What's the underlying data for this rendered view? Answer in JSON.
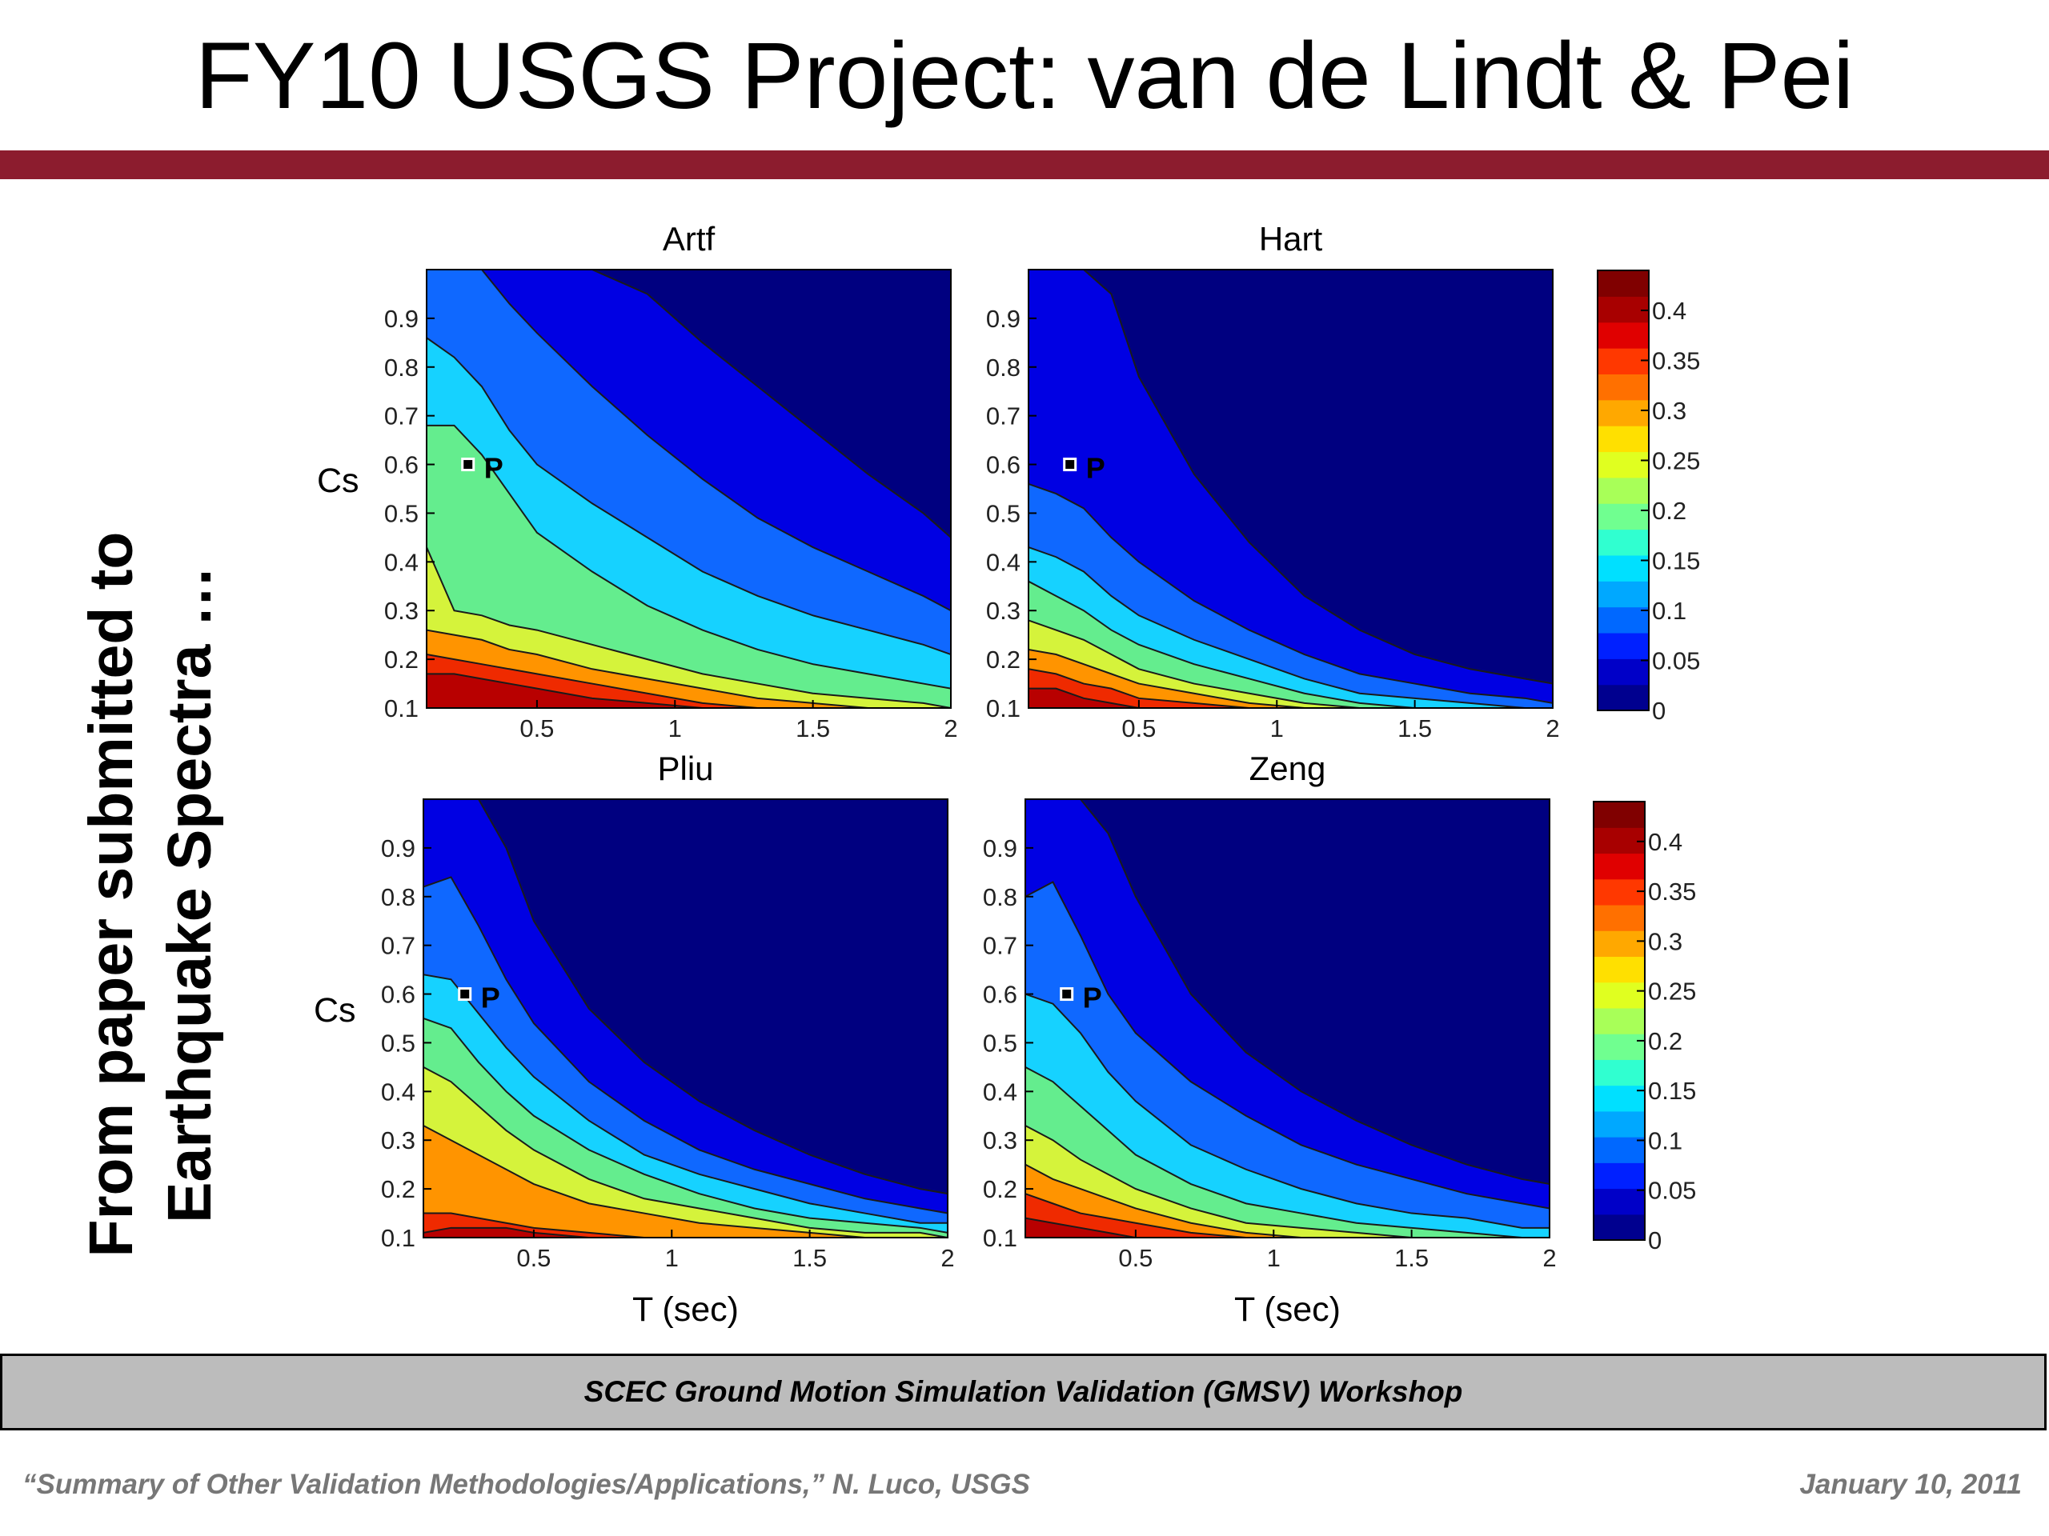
{
  "slide": {
    "title": "FY10 USGS Project: van de Lindt & Pei",
    "side_caption": [
      "From paper submitted to",
      "Earthquake Spectra …"
    ],
    "banner": "SCEC Ground Motion Simulation Validation (GMSV) Workshop",
    "footer_citation": "“Summary of Other Validation Methodologies/Applications,” N. Luco, USGS",
    "footer_date": "January 10, 2011",
    "accent_color": "#8c1c2e",
    "banner_color": "#bcbcbc"
  },
  "chart_data": [
    {
      "type": "heatmap",
      "title": "Artf",
      "xlabel": "",
      "ylabel": "Cs",
      "xlim": [
        0.1,
        2
      ],
      "ylim": [
        0.1,
        1
      ],
      "xticks": [
        "0.5",
        "1",
        "1.5",
        "2"
      ],
      "yticks": [
        "0.1",
        "0.2",
        "0.3",
        "0.4",
        "0.5",
        "0.6",
        "0.7",
        "0.8",
        "0.9"
      ],
      "marker": {
        "label": "P",
        "x": 0.25,
        "y": 0.6
      },
      "levels": [
        0.4,
        0.35,
        0.3,
        0.25,
        0.2,
        0.15,
        0.1,
        0.05
      ],
      "contour_x": [
        0.1,
        0.2,
        0.3,
        0.4,
        0.5,
        0.7,
        0.9,
        1.1,
        1.3,
        1.5,
        1.7,
        1.9,
        2.0
      ],
      "contours": [
        [
          0.17,
          0.17,
          0.16,
          0.15,
          0.14,
          0.12,
          0.11,
          0.1,
          0.1,
          0.1,
          0.1,
          0.1,
          0.1
        ],
        [
          0.21,
          0.2,
          0.19,
          0.18,
          0.17,
          0.15,
          0.13,
          0.11,
          0.1,
          0.1,
          0.1,
          0.1,
          0.1
        ],
        [
          0.26,
          0.25,
          0.24,
          0.22,
          0.21,
          0.18,
          0.16,
          0.14,
          0.12,
          0.11,
          0.1,
          0.1,
          0.1
        ],
        [
          0.43,
          0.3,
          0.29,
          0.27,
          0.26,
          0.23,
          0.2,
          0.17,
          0.15,
          0.13,
          0.12,
          0.11,
          0.1
        ],
        [
          0.68,
          0.68,
          0.62,
          0.54,
          0.46,
          0.38,
          0.31,
          0.26,
          0.22,
          0.19,
          0.17,
          0.15,
          0.14
        ],
        [
          0.86,
          0.82,
          0.76,
          0.67,
          0.6,
          0.52,
          0.45,
          0.38,
          0.33,
          0.29,
          0.26,
          0.23,
          0.21
        ],
        [
          1.0,
          1.0,
          1.0,
          0.93,
          0.87,
          0.76,
          0.66,
          0.57,
          0.49,
          0.43,
          0.38,
          0.33,
          0.3
        ],
        [
          1.0,
          1.0,
          1.0,
          1.0,
          1.0,
          1.0,
          0.95,
          0.85,
          0.76,
          0.67,
          0.58,
          0.5,
          0.45
        ]
      ]
    },
    {
      "type": "heatmap",
      "title": "Hart",
      "xlabel": "",
      "ylabel": "",
      "xlim": [
        0.1,
        2
      ],
      "ylim": [
        0.1,
        1
      ],
      "xticks": [
        "0.5",
        "1",
        "1.5",
        "2"
      ],
      "yticks": [
        "0.1",
        "0.2",
        "0.3",
        "0.4",
        "0.5",
        "0.6",
        "0.7",
        "0.8",
        "0.9"
      ],
      "marker": {
        "label": "P",
        "x": 0.25,
        "y": 0.6
      },
      "levels": [
        0.4,
        0.35,
        0.3,
        0.25,
        0.2,
        0.15,
        0.1,
        0.05
      ],
      "contour_x": [
        0.1,
        0.2,
        0.3,
        0.4,
        0.5,
        0.7,
        0.9,
        1.1,
        1.3,
        1.5,
        1.7,
        1.9,
        2.0
      ],
      "contours": [
        [
          0.14,
          0.14,
          0.12,
          0.11,
          0.1,
          0.1,
          0.1,
          0.1,
          0.1,
          0.1,
          0.1,
          0.1,
          0.1
        ],
        [
          0.18,
          0.17,
          0.15,
          0.14,
          0.12,
          0.11,
          0.1,
          0.1,
          0.1,
          0.1,
          0.1,
          0.1,
          0.1
        ],
        [
          0.22,
          0.21,
          0.19,
          0.17,
          0.15,
          0.13,
          0.11,
          0.1,
          0.1,
          0.1,
          0.1,
          0.1,
          0.1
        ],
        [
          0.28,
          0.26,
          0.24,
          0.21,
          0.18,
          0.15,
          0.13,
          0.11,
          0.1,
          0.1,
          0.1,
          0.1,
          0.1
        ],
        [
          0.36,
          0.33,
          0.3,
          0.26,
          0.23,
          0.19,
          0.16,
          0.13,
          0.11,
          0.1,
          0.1,
          0.1,
          0.1
        ],
        [
          0.43,
          0.41,
          0.38,
          0.33,
          0.29,
          0.24,
          0.2,
          0.16,
          0.13,
          0.12,
          0.11,
          0.1,
          0.1
        ],
        [
          0.56,
          0.54,
          0.51,
          0.45,
          0.4,
          0.32,
          0.26,
          0.21,
          0.17,
          0.15,
          0.13,
          0.12,
          0.11
        ],
        [
          1.0,
          1.0,
          1.0,
          0.95,
          0.78,
          0.58,
          0.44,
          0.33,
          0.26,
          0.21,
          0.18,
          0.16,
          0.15
        ]
      ]
    },
    {
      "type": "heatmap",
      "title": "Pliu",
      "xlabel": "T (sec)",
      "ylabel": "Cs",
      "xlim": [
        0.1,
        2
      ],
      "ylim": [
        0.1,
        1
      ],
      "xticks": [
        "0.5",
        "1",
        "1.5",
        "2"
      ],
      "yticks": [
        "0.1",
        "0.2",
        "0.3",
        "0.4",
        "0.5",
        "0.6",
        "0.7",
        "0.8",
        "0.9"
      ],
      "marker": {
        "label": "P",
        "x": 0.25,
        "y": 0.6
      },
      "levels": [
        0.4,
        0.35,
        0.3,
        0.25,
        0.2,
        0.15,
        0.1,
        0.05
      ],
      "contour_x": [
        0.1,
        0.2,
        0.3,
        0.4,
        0.5,
        0.7,
        0.9,
        1.1,
        1.3,
        1.5,
        1.7,
        1.9,
        2.0
      ],
      "contours": [
        [
          0.11,
          0.12,
          0.12,
          0.12,
          0.11,
          0.1,
          0.1,
          0.1,
          0.1,
          0.1,
          0.1,
          0.1,
          0.1
        ],
        [
          0.15,
          0.15,
          0.14,
          0.13,
          0.12,
          0.11,
          0.1,
          0.1,
          0.1,
          0.1,
          0.1,
          0.1,
          0.1
        ],
        [
          0.33,
          0.3,
          0.27,
          0.24,
          0.21,
          0.17,
          0.15,
          0.13,
          0.12,
          0.11,
          0.1,
          0.1,
          0.1
        ],
        [
          0.45,
          0.42,
          0.37,
          0.32,
          0.28,
          0.22,
          0.18,
          0.16,
          0.14,
          0.12,
          0.11,
          0.11,
          0.1
        ],
        [
          0.55,
          0.53,
          0.46,
          0.4,
          0.35,
          0.28,
          0.23,
          0.19,
          0.16,
          0.14,
          0.13,
          0.12,
          0.11
        ],
        [
          0.64,
          0.63,
          0.56,
          0.49,
          0.43,
          0.34,
          0.27,
          0.23,
          0.2,
          0.17,
          0.15,
          0.13,
          0.13
        ],
        [
          0.82,
          0.84,
          0.74,
          0.63,
          0.54,
          0.42,
          0.34,
          0.28,
          0.24,
          0.21,
          0.18,
          0.16,
          0.15
        ],
        [
          1.0,
          1.0,
          1.0,
          0.9,
          0.75,
          0.57,
          0.46,
          0.38,
          0.32,
          0.27,
          0.23,
          0.2,
          0.19
        ]
      ]
    },
    {
      "type": "heatmap",
      "title": "Zeng",
      "xlabel": "T (sec)",
      "ylabel": "",
      "xlim": [
        0.1,
        2
      ],
      "ylim": [
        0.1,
        1
      ],
      "xticks": [
        "0.5",
        "1",
        "1.5",
        "2"
      ],
      "yticks": [
        "0.1",
        "0.2",
        "0.3",
        "0.4",
        "0.5",
        "0.6",
        "0.7",
        "0.8",
        "0.9"
      ],
      "marker": {
        "label": "P",
        "x": 0.25,
        "y": 0.6
      },
      "levels": [
        0.4,
        0.35,
        0.3,
        0.25,
        0.2,
        0.15,
        0.1,
        0.05
      ],
      "contour_x": [
        0.1,
        0.2,
        0.3,
        0.4,
        0.5,
        0.7,
        0.9,
        1.1,
        1.3,
        1.5,
        1.7,
        1.9,
        2.0
      ],
      "contours": [
        [
          0.14,
          0.13,
          0.12,
          0.11,
          0.1,
          0.1,
          0.1,
          0.1,
          0.1,
          0.1,
          0.1,
          0.1,
          0.1
        ],
        [
          0.19,
          0.17,
          0.15,
          0.14,
          0.13,
          0.11,
          0.1,
          0.1,
          0.1,
          0.1,
          0.1,
          0.1,
          0.1
        ],
        [
          0.25,
          0.22,
          0.2,
          0.18,
          0.16,
          0.13,
          0.11,
          0.1,
          0.1,
          0.1,
          0.1,
          0.1,
          0.1
        ],
        [
          0.33,
          0.3,
          0.26,
          0.23,
          0.2,
          0.16,
          0.13,
          0.12,
          0.11,
          0.1,
          0.1,
          0.1,
          0.1
        ],
        [
          0.45,
          0.42,
          0.37,
          0.32,
          0.27,
          0.21,
          0.17,
          0.15,
          0.13,
          0.12,
          0.11,
          0.1,
          0.1
        ],
        [
          0.6,
          0.58,
          0.52,
          0.44,
          0.38,
          0.29,
          0.24,
          0.2,
          0.17,
          0.15,
          0.14,
          0.12,
          0.12
        ],
        [
          0.8,
          0.83,
          0.72,
          0.6,
          0.52,
          0.42,
          0.35,
          0.29,
          0.25,
          0.22,
          0.19,
          0.17,
          0.16
        ],
        [
          1.0,
          1.0,
          1.0,
          0.93,
          0.8,
          0.6,
          0.48,
          0.4,
          0.34,
          0.29,
          0.25,
          0.22,
          0.21
        ]
      ]
    }
  ],
  "colorbars": [
    {
      "ticks": [
        "0",
        "0.05",
        "0.1",
        "0.15",
        "0.2",
        "0.25",
        "0.3",
        "0.35",
        "0.4"
      ],
      "max": 0.44
    },
    {
      "ticks": [
        "0",
        "0.05",
        "0.1",
        "0.15",
        "0.2",
        "0.25",
        "0.3",
        "0.35",
        "0.4"
      ],
      "max": 0.44
    }
  ],
  "colormap": [
    "#00008f",
    "#0000c8",
    "#0020ff",
    "#0068ff",
    "#00a8ff",
    "#00e0ff",
    "#30ffd0",
    "#70ff90",
    "#a8ff58",
    "#e0ff20",
    "#ffe000",
    "#ffa800",
    "#ff7000",
    "#ff3800",
    "#e00000",
    "#a80000",
    "#800000"
  ],
  "band_colors": [
    "#b80000",
    "#ef2a00",
    "#ff9400",
    "#d5f33b",
    "#64ed8e",
    "#16d2ff",
    "#0f68ff",
    "#0000e3",
    "#000080"
  ]
}
